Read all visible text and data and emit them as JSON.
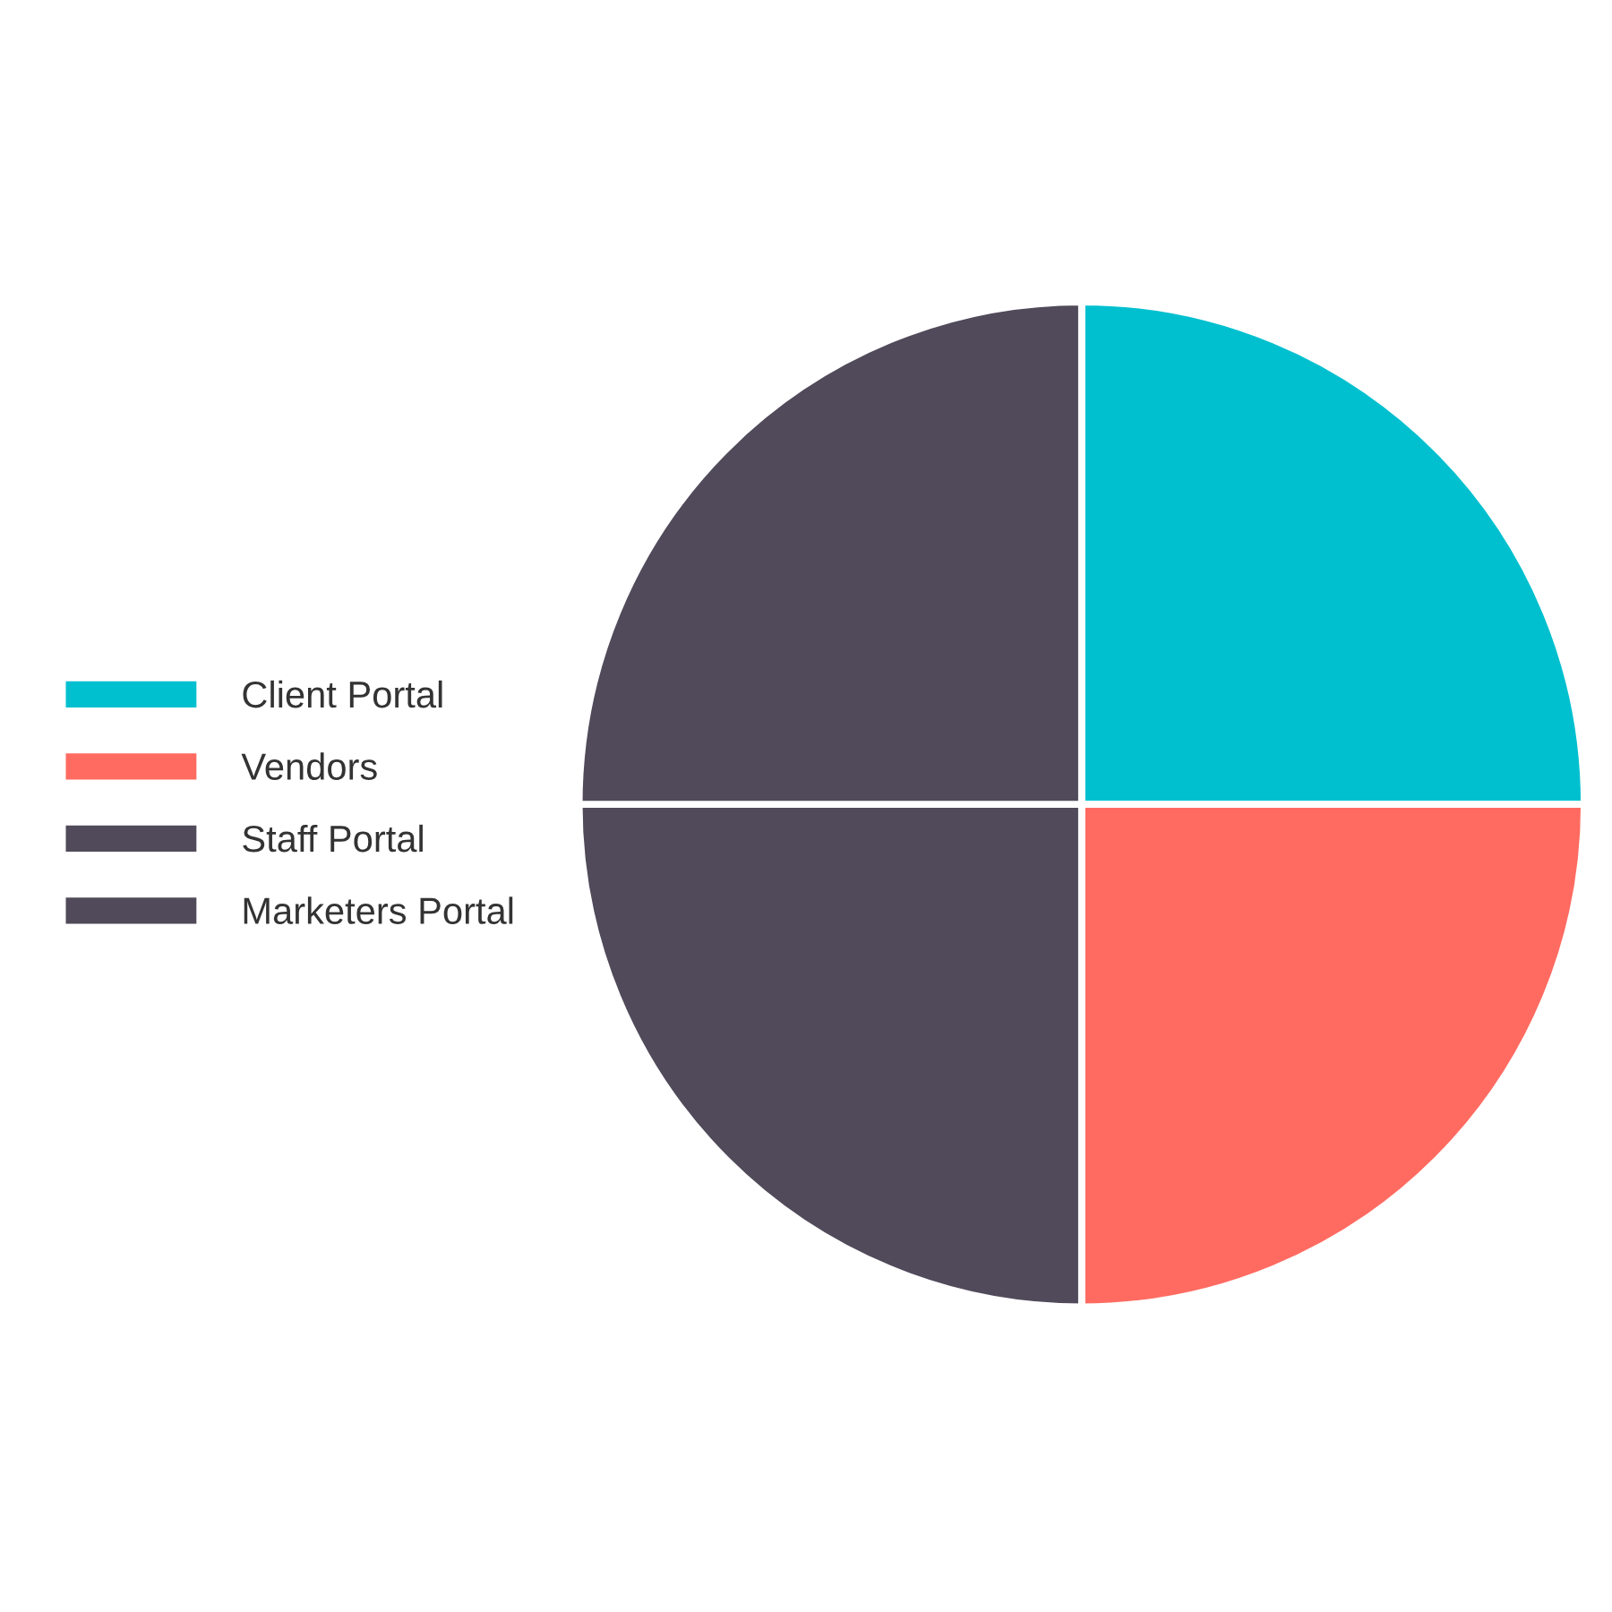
{
  "chart_data": {
    "type": "pie",
    "categories": [
      "Client Portal",
      "Vendors",
      "Staff Portal",
      "Marketers Portal"
    ],
    "values": [
      25,
      25,
      25,
      25
    ],
    "colors": [
      "#00c0cf",
      "#ff6b61",
      "#514a5a",
      "#514a5a"
    ],
    "legend": "left"
  }
}
